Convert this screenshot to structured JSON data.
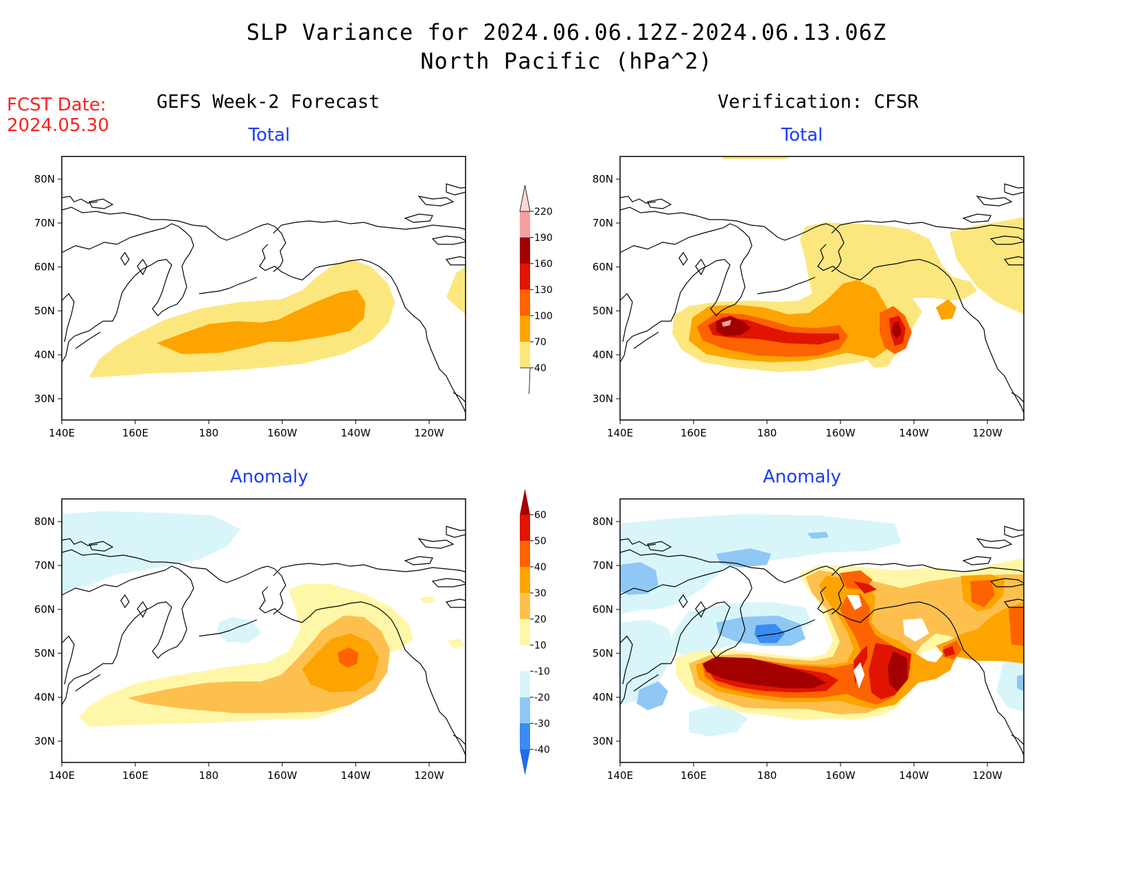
{
  "title": {
    "line1": "SLP Variance for 2024.06.06.12Z-2024.06.13.06Z",
    "line2": "North Pacific (hPa^2)"
  },
  "fcst_date": {
    "label": "FCST Date:",
    "value": "2024.05.30"
  },
  "columns": {
    "left": "GEFS Week-2 Forecast",
    "right": "Verification: CFSR"
  },
  "panels": {
    "top_left": "Total",
    "top_right": "Total",
    "bottom_left": "Anomaly",
    "bottom_right": "Anomaly"
  },
  "axes": {
    "lon_labels": [
      "140E",
      "160E",
      "180",
      "160W",
      "140W",
      "120W"
    ],
    "lat_labels": [
      "80N",
      "70N",
      "60N",
      "50N",
      "40N",
      "30N"
    ]
  },
  "colorbars": {
    "total": {
      "levels": [
        "40",
        "70",
        "100",
        "130",
        "160",
        "190",
        "220"
      ],
      "colors": [
        "#fce77f",
        "#fda400",
        "#fd6300",
        "#e01400",
        "#a30000",
        "#f4a0a0",
        "#fcd6d6"
      ]
    },
    "anomaly": {
      "levels": [
        "-40",
        "-30",
        "-20",
        "-10",
        "10",
        "20",
        "30",
        "40",
        "50",
        "60"
      ],
      "colors": [
        "#1e6cf0",
        "#3a8cf0",
        "#8fc8f5",
        "#d8f6fa",
        "#ffffff",
        "#fff7a8",
        "#fdc04e",
        "#fda400",
        "#fd6300",
        "#e01400",
        "#a30000"
      ]
    }
  }
}
